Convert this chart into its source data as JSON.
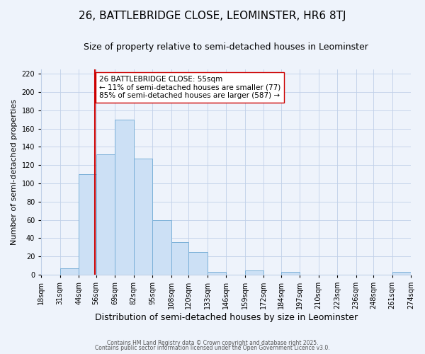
{
  "title": "26, BATTLEBRIDGE CLOSE, LEOMINSTER, HR6 8TJ",
  "subtitle": "Size of property relative to semi-detached houses in Leominster",
  "xlabel": "Distribution of semi-detached houses by size in Leominster",
  "ylabel": "Number of semi-detached properties",
  "bins": [
    18,
    31,
    44,
    56,
    69,
    82,
    95,
    108,
    120,
    133,
    146,
    159,
    172,
    184,
    197,
    210,
    223,
    236,
    248,
    261,
    274
  ],
  "counts": [
    0,
    7,
    110,
    132,
    170,
    127,
    60,
    36,
    25,
    3,
    0,
    5,
    0,
    3,
    0,
    0,
    0,
    0,
    0,
    3
  ],
  "bar_color": "#cce0f5",
  "bar_edge_color": "#7ab0d8",
  "property_size": 55,
  "vline_color": "#cc0000",
  "annotation_line1": "26 BATTLEBRIDGE CLOSE: 55sqm",
  "annotation_line2": "← 11% of semi-detached houses are smaller (77)",
  "annotation_line3": "85% of semi-detached houses are larger (587) →",
  "ylim": [
    0,
    225
  ],
  "yticks": [
    0,
    20,
    40,
    60,
    80,
    100,
    120,
    140,
    160,
    180,
    200,
    220
  ],
  "tick_labels": [
    "18sqm",
    "31sqm",
    "44sqm",
    "56sqm",
    "69sqm",
    "82sqm",
    "95sqm",
    "108sqm",
    "120sqm",
    "133sqm",
    "146sqm",
    "159sqm",
    "172sqm",
    "184sqm",
    "197sqm",
    "210sqm",
    "223sqm",
    "236sqm",
    "248sqm",
    "261sqm",
    "274sqm"
  ],
  "footer1": "Contains HM Land Registry data © Crown copyright and database right 2025.",
  "footer2": "Contains public sector information licensed under the Open Government Licence v3.0.",
  "bg_color": "#eef3fb",
  "grid_color": "#c0d0e8",
  "title_fontsize": 11,
  "subtitle_fontsize": 9,
  "xlabel_fontsize": 9,
  "ylabel_fontsize": 8,
  "tick_fontsize": 7,
  "annot_fontsize": 7.5,
  "footer_fontsize": 5.5
}
